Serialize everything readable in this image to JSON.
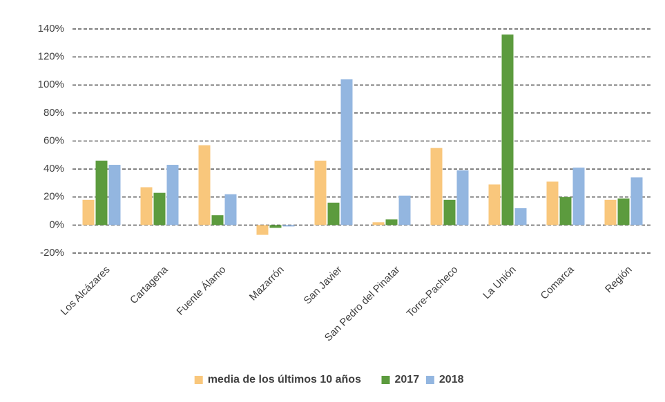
{
  "chart_data": {
    "type": "bar",
    "categories": [
      "Los Alcázares",
      "Cartagena",
      "Fuente Álamo",
      "Mazarrón",
      "San Javier",
      "San Pedro del Pinatar",
      "Torre-Pacheco",
      "La Unión",
      "Comarca",
      "Región"
    ],
    "series": [
      {
        "name": "media de los últimos 10 años",
        "color": "#f9c77c",
        "values": [
          18,
          27,
          57,
          -7,
          46,
          2,
          55,
          29,
          31,
          18
        ]
      },
      {
        "name": "2017",
        "color": "#5c9b3e",
        "values": [
          46,
          23,
          7,
          -2,
          16,
          4,
          18,
          136,
          20,
          19
        ]
      },
      {
        "name": "2018",
        "color": "#93b6e0",
        "values": [
          43,
          43,
          22,
          -1,
          104,
          21,
          39,
          12,
          41,
          34
        ]
      }
    ],
    "ylim": [
      -20,
      140
    ],
    "yticks": [
      {
        "value": -20,
        "label": "-20%"
      },
      {
        "value": 0,
        "label": "0%"
      },
      {
        "value": 20,
        "label": "20%"
      },
      {
        "value": 40,
        "label": "40%"
      },
      {
        "value": 60,
        "label": "60%"
      },
      {
        "value": 80,
        "label": "80%"
      },
      {
        "value": 100,
        "label": "100%"
      },
      {
        "value": 120,
        "label": "120%"
      },
      {
        "value": 140,
        "label": "140%"
      }
    ],
    "grid": true,
    "legend": "bottom"
  }
}
